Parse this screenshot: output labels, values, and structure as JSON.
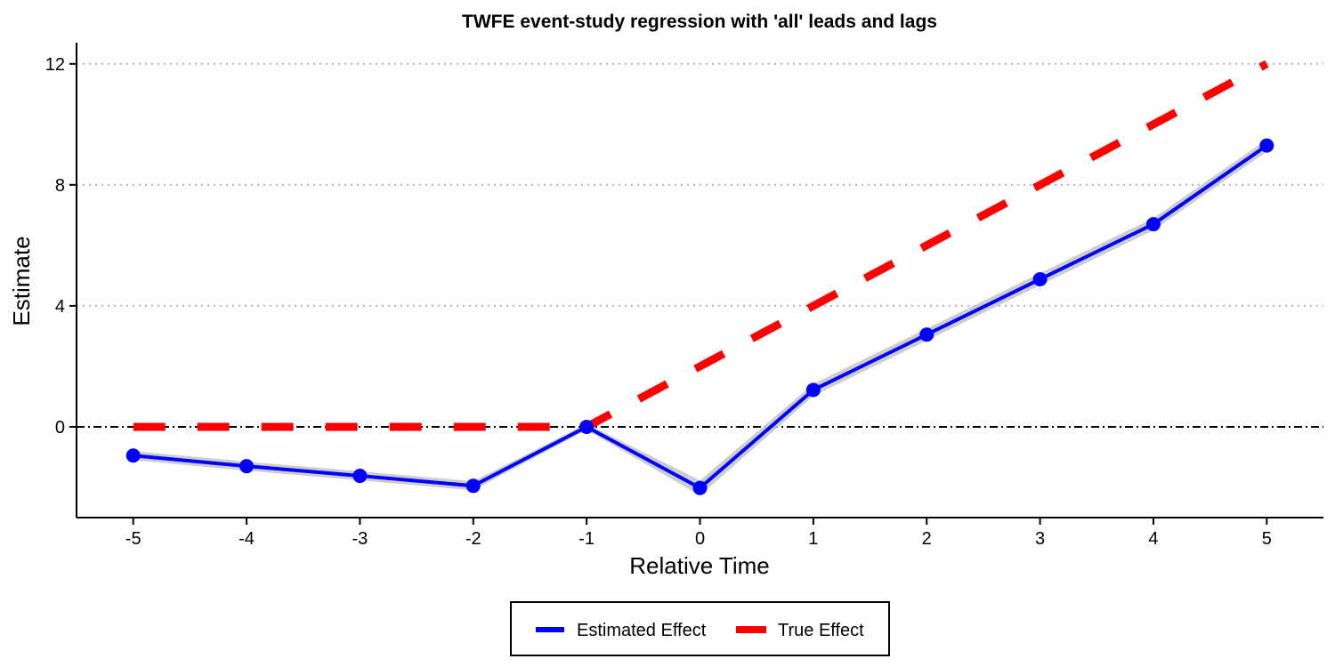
{
  "chart_data": {
    "type": "line",
    "title": "TWFE event-study regression with 'all' leads and lags",
    "xlabel": "Relative Time",
    "ylabel": "Estimate",
    "x": [
      -5,
      -4,
      -3,
      -2,
      -1,
      0,
      1,
      2,
      3,
      4,
      5
    ],
    "xticks": [
      "-5",
      "-4",
      "-3",
      "-2",
      "-1",
      "0",
      "1",
      "2",
      "3",
      "4",
      "5"
    ],
    "yticks": [
      "0",
      "4",
      "8",
      "12"
    ],
    "xlim": [
      -5.5,
      5.5
    ],
    "ylim": [
      -3.0,
      12.7
    ],
    "grid": "horizontal dotted",
    "reference_line": {
      "y": 0,
      "style": "dash-dot",
      "color": "#000000"
    },
    "series": [
      {
        "name": "Estimated Effect",
        "color": "#0000ff",
        "ci_color": "#c8c8c8",
        "values": [
          -0.95,
          -1.3,
          -1.62,
          -1.95,
          0.0,
          -2.02,
          1.22,
          3.05,
          4.88,
          6.7,
          9.3
        ],
        "ci_low": [
          -1.1,
          -1.45,
          -1.77,
          -2.1,
          -0.1,
          -2.27,
          1.02,
          2.85,
          4.68,
          6.5,
          9.1
        ],
        "ci_high": [
          -0.8,
          -1.15,
          -1.47,
          -1.8,
          0.1,
          -1.77,
          1.42,
          3.25,
          5.08,
          6.9,
          9.5
        ]
      },
      {
        "name": "True Effect",
        "color": "#ff0000",
        "style": "dashed",
        "values": [
          0,
          0,
          0,
          0,
          0,
          2,
          4,
          6,
          8,
          10,
          12
        ]
      }
    ],
    "legend": {
      "position": "bottom"
    }
  }
}
